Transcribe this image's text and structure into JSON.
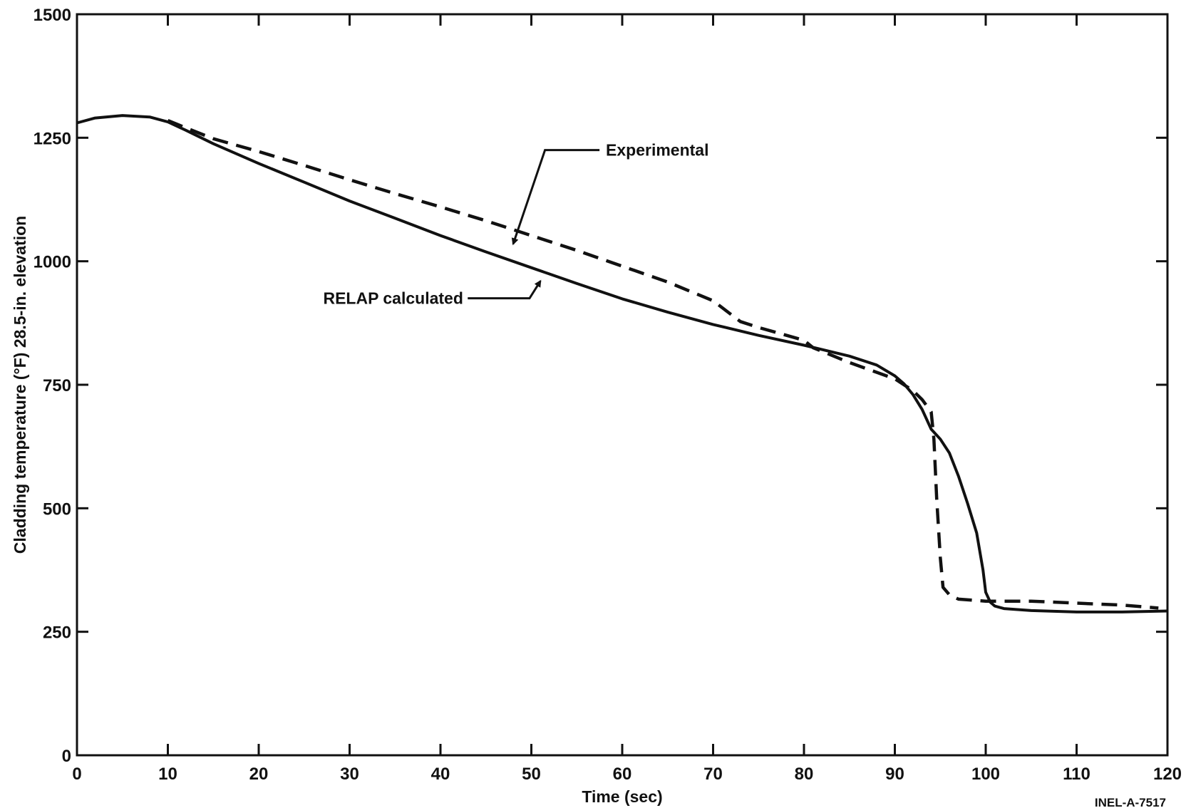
{
  "chart_data": {
    "type": "line",
    "title": "",
    "xlabel": "Time (sec)",
    "ylabel": "Cladding temperature (°F) 28.5-in. elevation",
    "xlim": [
      0,
      120
    ],
    "ylim": [
      0,
      1500
    ],
    "x_ticks": [
      0,
      10,
      20,
      30,
      40,
      50,
      60,
      70,
      80,
      90,
      100,
      110,
      120
    ],
    "y_ticks": [
      0,
      250,
      500,
      750,
      1000,
      1250,
      1500
    ],
    "grid": false,
    "legend": "none",
    "series": [
      {
        "name": "Experimental",
        "style": "dashed",
        "color": "#111111",
        "points": [
          [
            10,
            1285
          ],
          [
            12,
            1270
          ],
          [
            15,
            1248
          ],
          [
            20,
            1222
          ],
          [
            25,
            1194
          ],
          [
            30,
            1165
          ],
          [
            35,
            1137
          ],
          [
            40,
            1110
          ],
          [
            45,
            1082
          ],
          [
            50,
            1052
          ],
          [
            55,
            1022
          ],
          [
            60,
            990
          ],
          [
            65,
            958
          ],
          [
            70,
            920
          ],
          [
            73,
            878
          ],
          [
            75,
            866
          ],
          [
            80,
            840
          ],
          [
            81,
            825
          ],
          [
            85,
            795
          ],
          [
            90,
            762
          ],
          [
            92,
            738
          ],
          [
            93,
            720
          ],
          [
            94,
            695
          ],
          [
            94.3,
            640
          ],
          [
            94.6,
            520
          ],
          [
            95,
            400
          ],
          [
            95.3,
            340
          ],
          [
            96,
            325
          ],
          [
            97,
            316
          ],
          [
            100,
            312
          ],
          [
            105,
            312
          ],
          [
            110,
            308
          ],
          [
            115,
            304
          ],
          [
            119,
            298
          ]
        ]
      },
      {
        "name": "RELAP calculated",
        "style": "solid",
        "color": "#111111",
        "points": [
          [
            0,
            1280
          ],
          [
            2,
            1290
          ],
          [
            5,
            1295
          ],
          [
            8,
            1292
          ],
          [
            10,
            1282
          ],
          [
            12,
            1265
          ],
          [
            15,
            1238
          ],
          [
            20,
            1198
          ],
          [
            25,
            1160
          ],
          [
            30,
            1122
          ],
          [
            35,
            1087
          ],
          [
            40,
            1052
          ],
          [
            45,
            1019
          ],
          [
            50,
            987
          ],
          [
            55,
            955
          ],
          [
            60,
            924
          ],
          [
            65,
            897
          ],
          [
            70,
            872
          ],
          [
            75,
            850
          ],
          [
            80,
            830
          ],
          [
            85,
            808
          ],
          [
            88,
            790
          ],
          [
            90,
            768
          ],
          [
            91,
            752
          ],
          [
            92,
            730
          ],
          [
            93,
            700
          ],
          [
            94,
            660
          ],
          [
            95,
            640
          ],
          [
            96,
            612
          ],
          [
            97,
            565
          ],
          [
            98,
            510
          ],
          [
            99,
            450
          ],
          [
            99.7,
            375
          ],
          [
            100,
            330
          ],
          [
            100.5,
            310
          ],
          [
            101,
            302
          ],
          [
            102,
            297
          ],
          [
            105,
            293
          ],
          [
            110,
            290
          ],
          [
            115,
            290
          ],
          [
            120,
            292
          ]
        ]
      }
    ],
    "annotations": [
      {
        "text": "Experimental",
        "x": 48,
        "y": 1035
      },
      {
        "text": "RELAP calculated",
        "x": 51,
        "y": 960
      }
    ],
    "figure_id": "INEL-A-7517"
  }
}
